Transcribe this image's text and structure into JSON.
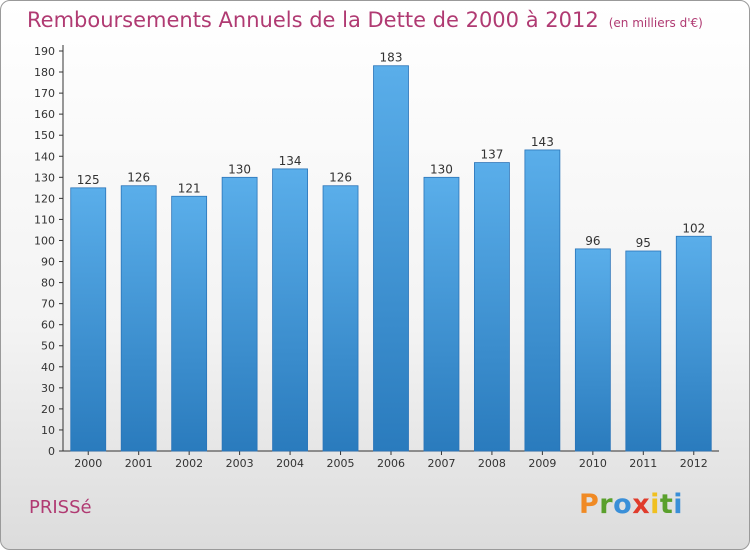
{
  "header": {
    "title": "Remboursements Annuels de la Dette de 2000 à 2012",
    "unit": "(en milliers d'€)"
  },
  "footer": {
    "place": "PRISSé",
    "logo": [
      "P",
      "r",
      "o",
      "x",
      "i",
      "t",
      "i"
    ]
  },
  "colors": {
    "title": "#b03a72",
    "bar_top": "#5aaeea",
    "bar_bottom": "#2a7bbd"
  },
  "chart_data": {
    "type": "bar",
    "title": "Remboursements Annuels de la Dette de 2000 à 2012",
    "xlabel": "",
    "ylabel": "",
    "categories": [
      "2000",
      "2001",
      "2002",
      "2003",
      "2004",
      "2005",
      "2006",
      "2007",
      "2008",
      "2009",
      "2010",
      "2011",
      "2012"
    ],
    "values": [
      125,
      126,
      121,
      130,
      134,
      126,
      183,
      130,
      137,
      143,
      96,
      95,
      102
    ],
    "ylim": [
      0,
      190
    ],
    "ytick_step": 10,
    "grid": false,
    "legend": "none"
  }
}
